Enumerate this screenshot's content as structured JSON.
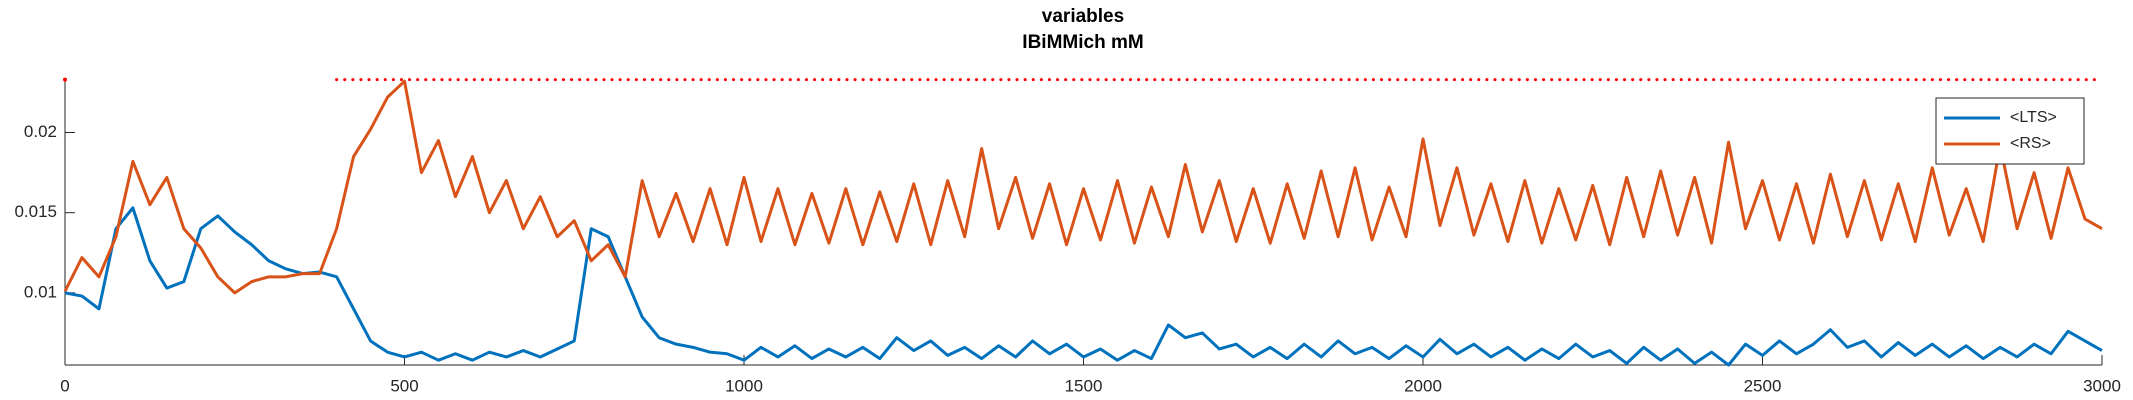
{
  "chart_data": {
    "type": "line",
    "title": "variables",
    "subtitle": "IBiMMich mM",
    "x": [
      0,
      25,
      50,
      75,
      100,
      125,
      150,
      175,
      200,
      225,
      250,
      275,
      300,
      325,
      350,
      375,
      400,
      425,
      450,
      475,
      500,
      525,
      550,
      575,
      600,
      625,
      650,
      675,
      700,
      725,
      750,
      775,
      800,
      825,
      850,
      875,
      900,
      925,
      950,
      975,
      1000,
      1025,
      1050,
      1075,
      1100,
      1125,
      1150,
      1175,
      1200,
      1225,
      1250,
      1275,
      1300,
      1325,
      1350,
      1375,
      1400,
      1425,
      1450,
      1475,
      1500,
      1525,
      1550,
      1575,
      1600,
      1625,
      1650,
      1675,
      1700,
      1725,
      1750,
      1775,
      1800,
      1825,
      1850,
      1875,
      1900,
      1925,
      1950,
      1975,
      2000,
      2025,
      2050,
      2075,
      2100,
      2125,
      2150,
      2175,
      2200,
      2225,
      2250,
      2275,
      2300,
      2325,
      2350,
      2375,
      2400,
      2425,
      2450,
      2475,
      2500,
      2525,
      2550,
      2575,
      2600,
      2625,
      2650,
      2675,
      2700,
      2725,
      2750,
      2775,
      2800,
      2825,
      2850,
      2875,
      2900,
      2925,
      2950,
      2975,
      3000
    ],
    "series": [
      {
        "name": "<LTS>",
        "color": "#0072bd",
        "values": [
          0.01,
          0.0098,
          0.009,
          0.014,
          0.0153,
          0.012,
          0.0103,
          0.0107,
          0.014,
          0.0148,
          0.0138,
          0.013,
          0.012,
          0.0115,
          0.0112,
          0.0113,
          0.011,
          0.009,
          0.007,
          0.0063,
          0.006,
          0.0063,
          0.0058,
          0.0062,
          0.0058,
          0.0063,
          0.006,
          0.0064,
          0.006,
          0.0065,
          0.007,
          0.014,
          0.0135,
          0.011,
          0.0085,
          0.0072,
          0.0068,
          0.0066,
          0.0063,
          0.0062,
          0.0058,
          0.0066,
          0.006,
          0.0067,
          0.0059,
          0.0065,
          0.006,
          0.0066,
          0.0059,
          0.0072,
          0.0064,
          0.007,
          0.0061,
          0.0066,
          0.0059,
          0.0067,
          0.006,
          0.007,
          0.0062,
          0.0068,
          0.006,
          0.0065,
          0.0058,
          0.0064,
          0.0059,
          0.008,
          0.0072,
          0.0075,
          0.0065,
          0.0068,
          0.006,
          0.0066,
          0.0059,
          0.0068,
          0.006,
          0.007,
          0.0062,
          0.0066,
          0.0059,
          0.0067,
          0.006,
          0.0071,
          0.0062,
          0.0068,
          0.006,
          0.0066,
          0.0058,
          0.0065,
          0.0059,
          0.0068,
          0.006,
          0.0064,
          0.0056,
          0.0066,
          0.0058,
          0.0065,
          0.0056,
          0.0063,
          0.0055,
          0.0068,
          0.0061,
          0.007,
          0.0062,
          0.0068,
          0.0077,
          0.0066,
          0.007,
          0.006,
          0.0069,
          0.0061,
          0.0068,
          0.006,
          0.0067,
          0.0059,
          0.0066,
          0.006,
          0.0068,
          0.0062,
          0.0076,
          0.007,
          0.0064
        ]
      },
      {
        "name": "<RS>",
        "color": "#d95319",
        "values": [
          0.0101,
          0.0122,
          0.011,
          0.0135,
          0.0182,
          0.0155,
          0.0172,
          0.014,
          0.0128,
          0.011,
          0.01,
          0.0107,
          0.011,
          0.011,
          0.0112,
          0.0112,
          0.014,
          0.0185,
          0.0202,
          0.0222,
          0.0232,
          0.0175,
          0.0195,
          0.016,
          0.0185,
          0.015,
          0.017,
          0.014,
          0.016,
          0.0135,
          0.0145,
          0.012,
          0.013,
          0.011,
          0.017,
          0.0135,
          0.0162,
          0.0132,
          0.0165,
          0.013,
          0.0172,
          0.0132,
          0.0165,
          0.013,
          0.0162,
          0.0131,
          0.0165,
          0.013,
          0.0163,
          0.0132,
          0.0168,
          0.013,
          0.017,
          0.0135,
          0.019,
          0.014,
          0.0172,
          0.0134,
          0.0168,
          0.013,
          0.0165,
          0.0133,
          0.017,
          0.0131,
          0.0166,
          0.0135,
          0.018,
          0.0138,
          0.017,
          0.0132,
          0.0165,
          0.0131,
          0.0168,
          0.0134,
          0.0176,
          0.0135,
          0.0178,
          0.0133,
          0.0166,
          0.0135,
          0.0196,
          0.0142,
          0.0178,
          0.0136,
          0.0168,
          0.0132,
          0.017,
          0.0131,
          0.0165,
          0.0133,
          0.0167,
          0.013,
          0.0172,
          0.0135,
          0.0176,
          0.0136,
          0.0172,
          0.0131,
          0.0194,
          0.014,
          0.017,
          0.0133,
          0.0168,
          0.0131,
          0.0174,
          0.0135,
          0.017,
          0.0133,
          0.0168,
          0.0132,
          0.0178,
          0.0136,
          0.0165,
          0.0132,
          0.0192,
          0.014,
          0.0175,
          0.0134,
          0.0178,
          0.0146,
          0.014
        ]
      },
      {
        "color": "#ff0000",
        "style": "dotted",
        "x": [
          0,
          200,
          400,
          3000
        ],
        "values": [
          0.0233,
          null,
          0.0233,
          0.0233
        ]
      }
    ],
    "xlim": [
      0,
      3000
    ],
    "xticks": [
      0,
      500,
      1000,
      1500,
      2000,
      2500,
      3000
    ],
    "ylim": [
      0.0055,
      0.0234
    ],
    "yticks": [
      0.01,
      0.015,
      0.02
    ],
    "legend": "upper right"
  }
}
